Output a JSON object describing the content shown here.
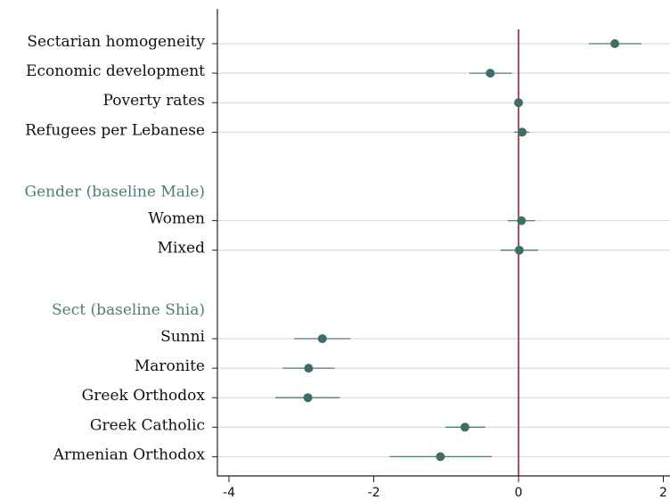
{
  "chart_data": {
    "type": "scatter",
    "subtype": "coefficient-plot",
    "xlim": [
      -4,
      2
    ],
    "x_ticks": [
      -4,
      -2,
      0,
      2
    ],
    "x_tick_labels": [
      "-4",
      "-2",
      "0",
      "2"
    ],
    "reference_line_x": 0,
    "grid": true,
    "rows": [
      {
        "label": "Sectarian homogeneity",
        "kind": "coef",
        "estimate": 1.33,
        "ci": [
          0.97,
          1.7
        ]
      },
      {
        "label": "Economic development",
        "kind": "coef",
        "estimate": -0.39,
        "ci": [
          -0.68,
          -0.09
        ]
      },
      {
        "label": "Poverty rates",
        "kind": "coef",
        "estimate": 0.0,
        "ci": [
          -0.03,
          0.03
        ]
      },
      {
        "label": "Refugees per Lebanese",
        "kind": "coef",
        "estimate": 0.05,
        "ci": [
          -0.06,
          0.15
        ]
      },
      {
        "label": "",
        "kind": "blank"
      },
      {
        "label": "Gender (baseline Male)",
        "kind": "group"
      },
      {
        "label": "Women",
        "kind": "coef",
        "estimate": 0.04,
        "ci": [
          -0.15,
          0.23
        ]
      },
      {
        "label": "Mixed",
        "kind": "coef",
        "estimate": 0.01,
        "ci": [
          -0.25,
          0.27
        ]
      },
      {
        "label": "",
        "kind": "blank"
      },
      {
        "label": "Sect (baseline Shia)",
        "kind": "group"
      },
      {
        "label": "Sunni",
        "kind": "coef",
        "estimate": -2.71,
        "ci": [
          -3.1,
          -2.32
        ]
      },
      {
        "label": "Maronite",
        "kind": "coef",
        "estimate": -2.9,
        "ci": [
          -3.26,
          -2.54
        ]
      },
      {
        "label": "Greek Orthodox",
        "kind": "coef",
        "estimate": -2.91,
        "ci": [
          -3.36,
          -2.47
        ]
      },
      {
        "label": "Greek Catholic",
        "kind": "coef",
        "estimate": -0.74,
        "ci": [
          -1.01,
          -0.46
        ]
      },
      {
        "label": "Armenian Orthodox",
        "kind": "coef",
        "estimate": -1.08,
        "ci": [
          -1.78,
          -0.37
        ]
      }
    ]
  },
  "colors": {
    "marker": "#3f6e69",
    "ci_line": "#4a7b76",
    "group_label": "#4d7f7a",
    "reference_line": "#a51d3c",
    "grid": "#d4d4d4",
    "axis": "#222222"
  }
}
